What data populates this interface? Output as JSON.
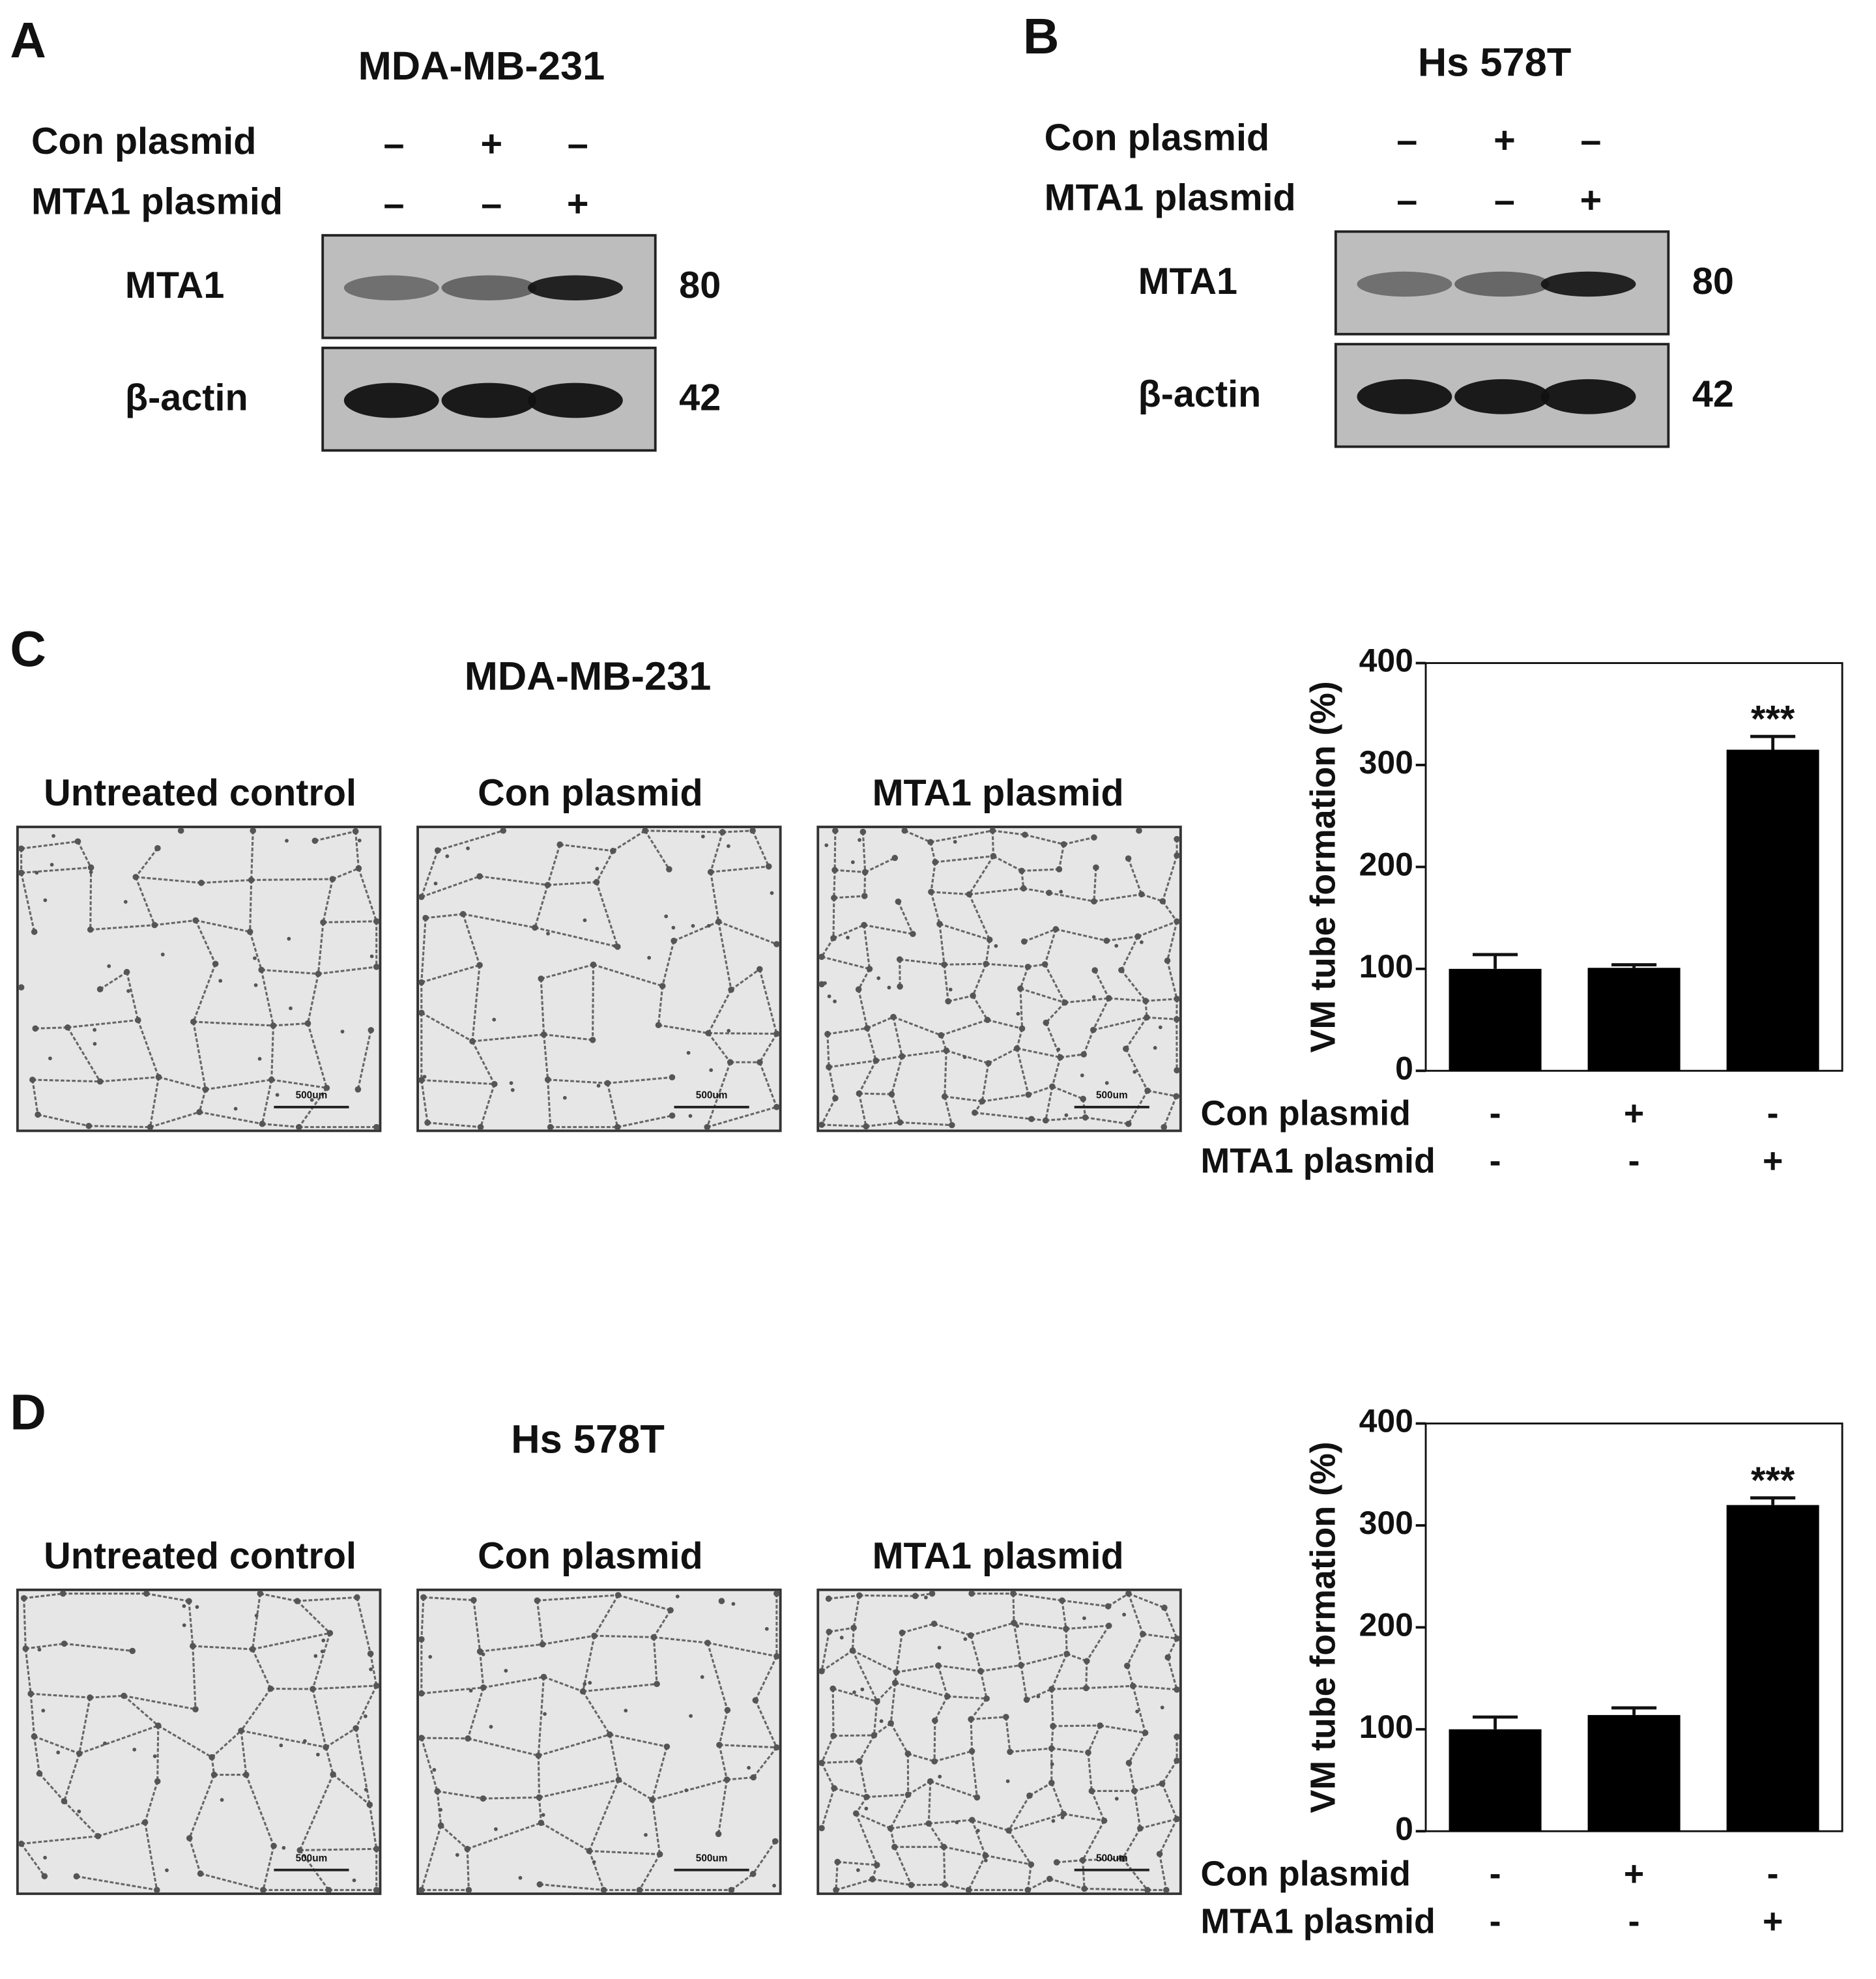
{
  "panel_a": {
    "letter": "A",
    "title": "MDA-MB-231",
    "conditions": [
      {
        "label": "Con plasmid",
        "signs": [
          "–",
          "+",
          "–"
        ]
      },
      {
        "label": "MTA1 plasmid",
        "signs": [
          "–",
          "–",
          "+"
        ]
      }
    ],
    "bands": [
      {
        "label": "MTA1",
        "kda": 80
      },
      {
        "label": "β-actin",
        "kda": 42
      }
    ]
  },
  "panel_b": {
    "letter": "B",
    "title": "Hs 578T",
    "conditions": [
      {
        "label": "Con plasmid",
        "signs": [
          "–",
          "+",
          "–"
        ]
      },
      {
        "label": "MTA1 plasmid",
        "signs": [
          "–",
          "–",
          "+"
        ]
      }
    ],
    "bands": [
      {
        "label": "MTA1",
        "kda": 80
      },
      {
        "label": "β-actin",
        "kda": 42
      }
    ]
  },
  "panel_c": {
    "letter": "C",
    "title": "MDA-MB-231",
    "images": [
      "Untreated control",
      "Con plasmid",
      "MTA1 plasmid"
    ],
    "scale_bar": "500um"
  },
  "panel_d": {
    "letter": "D",
    "title": "Hs 578T",
    "images": [
      "Untreated control",
      "Con plasmid",
      "MTA1 plasmid"
    ],
    "scale_bar": "500um"
  },
  "chart_data": [
    {
      "type": "bar",
      "y_label": "VM tube formation (%)",
      "values": [
        100,
        101,
        315
      ],
      "errors": [
        14,
        3,
        13
      ],
      "significance": [
        null,
        null,
        "***"
      ],
      "conditions": [
        {
          "label": "Con plasmid",
          "signs": [
            "-",
            "+",
            "-"
          ]
        },
        {
          "label": "MTA1 plasmid",
          "signs": [
            "-",
            "-",
            "+"
          ]
        }
      ],
      "color": "#000000",
      "ylim": [
        0,
        400
      ],
      "yticks": [
        0,
        100,
        200,
        300,
        400
      ]
    },
    {
      "type": "bar",
      "y_label": "VM tube formation (%)",
      "values": [
        100,
        114,
        320
      ],
      "errors": [
        12,
        7,
        7
      ],
      "significance": [
        null,
        null,
        "***"
      ],
      "conditions": [
        {
          "label": "Con plasmid",
          "signs": [
            "-",
            "+",
            "-"
          ]
        },
        {
          "label": "MTA1 plasmid",
          "signs": [
            "-",
            "-",
            "+"
          ]
        }
      ],
      "color": "#000000",
      "ylim": [
        0,
        400
      ],
      "yticks": [
        0,
        100,
        200,
        300,
        400
      ]
    }
  ]
}
